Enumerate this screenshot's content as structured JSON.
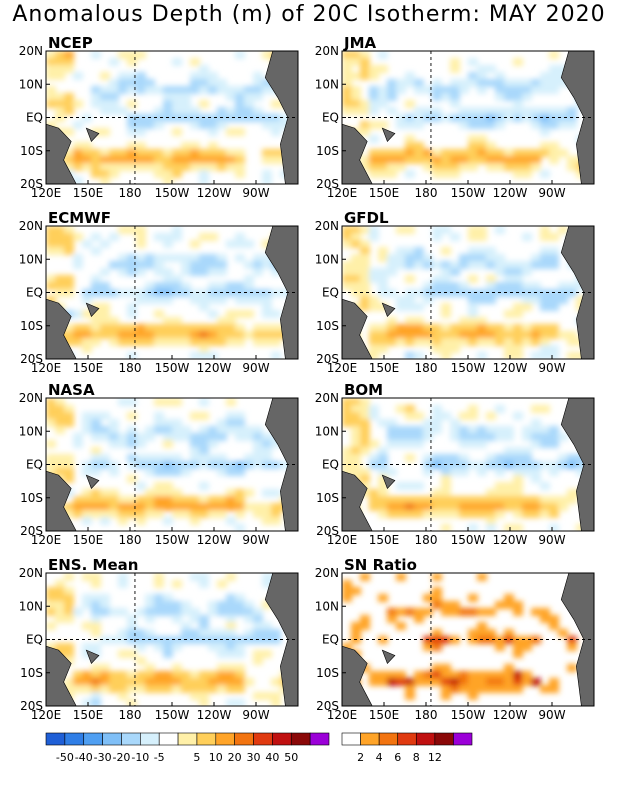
{
  "title": "Anomalous Depth (m) of 20C Isotherm: MAY 2020",
  "colors": {
    "land": "#666666",
    "anomaly": [
      "#1f5fd6",
      "#2f7ee6",
      "#4f9ff2",
      "#7fbff7",
      "#a9d8fb",
      "#d6f0fc",
      "#ffffff",
      "#fff0a8",
      "#ffcf5a",
      "#ffa428",
      "#f27410",
      "#e03a10",
      "#c01010",
      "#8a0808",
      "#9b00d8"
    ],
    "ratio": [
      "#ffffff",
      "#ffa428",
      "#f27410",
      "#e03a10",
      "#c01010",
      "#8a0808",
      "#9b00d8"
    ]
  },
  "axes": {
    "x_ticks": [
      "120E",
      "150E",
      "180",
      "150W",
      "120W",
      "90W"
    ],
    "y_ticks": [
      "20N",
      "10N",
      "EQ",
      "10S",
      "20S"
    ]
  },
  "panels": [
    {
      "id": "ncep",
      "label": "NCEP"
    },
    {
      "id": "jma",
      "label": "JMA"
    },
    {
      "id": "ecmwf",
      "label": "ECMWF"
    },
    {
      "id": "gfdl",
      "label": "GFDL"
    },
    {
      "id": "nasa",
      "label": "NASA"
    },
    {
      "id": "bom",
      "label": "BOM"
    },
    {
      "id": "ens",
      "label": "ENS. Mean"
    },
    {
      "id": "sn",
      "label": "SN Ratio"
    }
  ],
  "colorbar_anomaly": {
    "labels": [
      "-50",
      "-40",
      "-30",
      "-20",
      "-10",
      "-5",
      "5",
      "10",
      "20",
      "30",
      "40",
      "50"
    ]
  },
  "colorbar_ratio": {
    "labels": [
      "2",
      "4",
      "6",
      "8",
      "12"
    ]
  },
  "chart_data": {
    "type": "heatmap",
    "title": "Anomalous Depth (m) of 20C Isotherm: MAY 2020",
    "x_range": [
      "120E",
      "80W"
    ],
    "y_range": [
      "20S",
      "20N"
    ],
    "units": "m",
    "panels": [
      "NCEP",
      "JMA",
      "ECMWF",
      "GFDL",
      "NASA",
      "BOM",
      "ENS. Mean",
      "SN Ratio"
    ],
    "anomaly_levels": [
      -50,
      -40,
      -30,
      -20,
      -10,
      -5,
      5,
      10,
      20,
      30,
      40,
      50
    ],
    "snratio_levels": [
      2,
      4,
      6,
      8,
      12
    ]
  }
}
